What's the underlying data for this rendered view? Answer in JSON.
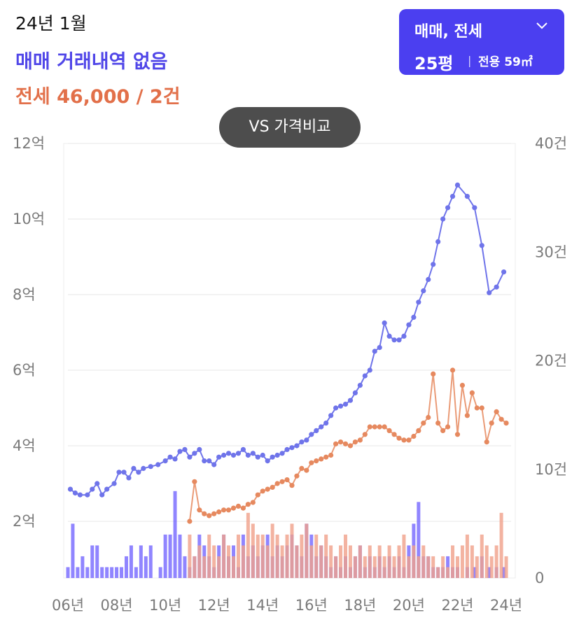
{
  "header": {
    "date": "24년 1월",
    "sale_status": "매매 거래내역 없음",
    "jeonse_status": "전세 46,000 / 2건"
  },
  "selector": {
    "type_label": "매매, 전세",
    "size_label": "25평",
    "area_label": "전용 59㎡"
  },
  "compare_button": "VS 가격비교",
  "colors": {
    "sale": "#6f74ea",
    "jeonse": "#e6895f",
    "accent": "#4b3ff0",
    "sale_bar": "#6b5cff",
    "jeonse_bar": "#f0a08a"
  },
  "chart_data": {
    "type": "line",
    "x_ticks": [
      "06년",
      "08년",
      "10년",
      "12년",
      "14년",
      "16년",
      "18년",
      "20년",
      "22년",
      "24년"
    ],
    "y_left_ticks": [
      "2억",
      "4억",
      "6억",
      "8억",
      "10억",
      "12억"
    ],
    "y_left_range": [
      0.5,
      12
    ],
    "y_right_ticks": [
      "0",
      "10건",
      "20건",
      "30건",
      "40건"
    ],
    "y_right_range": [
      0,
      40
    ],
    "x_range": [
      2006.0,
      2024.2
    ],
    "series": [
      {
        "key": "sale",
        "type": "line",
        "points": [
          [
            2006.1,
            2.85
          ],
          [
            2006.3,
            2.75
          ],
          [
            2006.5,
            2.7
          ],
          [
            2006.8,
            2.7
          ],
          [
            2007.0,
            2.85
          ],
          [
            2007.2,
            3.0
          ],
          [
            2007.4,
            2.7
          ],
          [
            2007.6,
            2.85
          ],
          [
            2007.9,
            3.0
          ],
          [
            2008.1,
            3.3
          ],
          [
            2008.3,
            3.3
          ],
          [
            2008.5,
            3.15
          ],
          [
            2008.7,
            3.4
          ],
          [
            2008.9,
            3.3
          ],
          [
            2009.1,
            3.4
          ],
          [
            2009.4,
            3.45
          ],
          [
            2009.7,
            3.5
          ],
          [
            2010.0,
            3.6
          ],
          [
            2010.2,
            3.7
          ],
          [
            2010.4,
            3.65
          ],
          [
            2010.6,
            3.85
          ],
          [
            2010.8,
            3.9
          ],
          [
            2011.0,
            3.7
          ],
          [
            2011.2,
            3.8
          ],
          [
            2011.4,
            3.9
          ],
          [
            2011.6,
            3.6
          ],
          [
            2011.8,
            3.6
          ],
          [
            2012.0,
            3.5
          ],
          [
            2012.2,
            3.7
          ],
          [
            2012.4,
            3.75
          ],
          [
            2012.6,
            3.8
          ],
          [
            2012.8,
            3.75
          ],
          [
            2013.0,
            3.8
          ],
          [
            2013.2,
            3.9
          ],
          [
            2013.4,
            3.75
          ],
          [
            2013.6,
            3.8
          ],
          [
            2013.8,
            3.7
          ],
          [
            2014.0,
            3.75
          ],
          [
            2014.2,
            3.6
          ],
          [
            2014.4,
            3.7
          ],
          [
            2014.6,
            3.75
          ],
          [
            2014.8,
            3.8
          ],
          [
            2015.0,
            3.9
          ],
          [
            2015.2,
            3.95
          ],
          [
            2015.4,
            4.0
          ],
          [
            2015.6,
            4.1
          ],
          [
            2015.8,
            4.15
          ],
          [
            2016.0,
            4.3
          ],
          [
            2016.2,
            4.4
          ],
          [
            2016.4,
            4.5
          ],
          [
            2016.6,
            4.6
          ],
          [
            2016.8,
            4.8
          ],
          [
            2017.0,
            5.0
          ],
          [
            2017.2,
            5.05
          ],
          [
            2017.4,
            5.1
          ],
          [
            2017.6,
            5.2
          ],
          [
            2017.8,
            5.4
          ],
          [
            2018.0,
            5.6
          ],
          [
            2018.2,
            5.85
          ],
          [
            2018.4,
            6.0
          ],
          [
            2018.6,
            6.5
          ],
          [
            2018.8,
            6.6
          ],
          [
            2019.0,
            7.25
          ],
          [
            2019.2,
            6.9
          ],
          [
            2019.4,
            6.8
          ],
          [
            2019.6,
            6.8
          ],
          [
            2019.8,
            6.9
          ],
          [
            2020.0,
            7.2
          ],
          [
            2020.2,
            7.4
          ],
          [
            2020.4,
            7.8
          ],
          [
            2020.6,
            8.1
          ],
          [
            2020.8,
            8.4
          ],
          [
            2021.0,
            8.8
          ],
          [
            2021.2,
            9.4
          ],
          [
            2021.4,
            10.0
          ],
          [
            2021.6,
            10.3
          ],
          [
            2021.8,
            10.6
          ],
          [
            2022.0,
            10.9
          ],
          [
            2022.4,
            10.6
          ],
          [
            2022.7,
            10.3
          ],
          [
            2023.0,
            9.3
          ],
          [
            2023.3,
            8.05
          ],
          [
            2023.6,
            8.2
          ],
          [
            2023.9,
            8.6
          ]
        ]
      },
      {
        "key": "jeonse",
        "type": "line",
        "points": [
          [
            2011.0,
            2.0
          ],
          [
            2011.2,
            3.05
          ],
          [
            2011.4,
            2.3
          ],
          [
            2011.6,
            2.2
          ],
          [
            2011.8,
            2.15
          ],
          [
            2012.0,
            2.2
          ],
          [
            2012.2,
            2.25
          ],
          [
            2012.4,
            2.3
          ],
          [
            2012.6,
            2.3
          ],
          [
            2012.8,
            2.35
          ],
          [
            2013.0,
            2.4
          ],
          [
            2013.2,
            2.35
          ],
          [
            2013.4,
            2.45
          ],
          [
            2013.6,
            2.5
          ],
          [
            2013.8,
            2.7
          ],
          [
            2014.0,
            2.8
          ],
          [
            2014.2,
            2.85
          ],
          [
            2014.4,
            2.9
          ],
          [
            2014.6,
            3.0
          ],
          [
            2014.8,
            3.05
          ],
          [
            2015.0,
            3.1
          ],
          [
            2015.2,
            2.95
          ],
          [
            2015.4,
            3.2
          ],
          [
            2015.6,
            3.4
          ],
          [
            2015.8,
            3.35
          ],
          [
            2016.0,
            3.55
          ],
          [
            2016.2,
            3.6
          ],
          [
            2016.4,
            3.65
          ],
          [
            2016.6,
            3.7
          ],
          [
            2016.8,
            3.75
          ],
          [
            2017.0,
            4.05
          ],
          [
            2017.2,
            4.1
          ],
          [
            2017.4,
            4.05
          ],
          [
            2017.6,
            4.0
          ],
          [
            2017.8,
            4.1
          ],
          [
            2018.0,
            4.15
          ],
          [
            2018.2,
            4.3
          ],
          [
            2018.4,
            4.5
          ],
          [
            2018.6,
            4.5
          ],
          [
            2018.8,
            4.5
          ],
          [
            2019.0,
            4.5
          ],
          [
            2019.2,
            4.4
          ],
          [
            2019.4,
            4.3
          ],
          [
            2019.6,
            4.2
          ],
          [
            2019.8,
            4.15
          ],
          [
            2020.0,
            4.15
          ],
          [
            2020.2,
            4.25
          ],
          [
            2020.4,
            4.4
          ],
          [
            2020.6,
            4.6
          ],
          [
            2020.8,
            4.75
          ],
          [
            2021.0,
            5.9
          ],
          [
            2021.2,
            4.6
          ],
          [
            2021.4,
            4.4
          ],
          [
            2021.6,
            4.5
          ],
          [
            2021.8,
            6.0
          ],
          [
            2022.0,
            4.3
          ],
          [
            2022.2,
            5.6
          ],
          [
            2022.4,
            4.8
          ],
          [
            2022.6,
            5.4
          ],
          [
            2022.8,
            5.0
          ],
          [
            2023.0,
            5.0
          ],
          [
            2023.2,
            4.1
          ],
          [
            2023.4,
            4.6
          ],
          [
            2023.6,
            4.9
          ],
          [
            2023.8,
            4.7
          ],
          [
            2024.0,
            4.6
          ]
        ]
      },
      {
        "key": "sale_volume",
        "type": "bar",
        "values": [
          [
            2006.0,
            1
          ],
          [
            2006.2,
            5
          ],
          [
            2006.4,
            1
          ],
          [
            2006.6,
            2
          ],
          [
            2006.8,
            1
          ],
          [
            2007.0,
            3
          ],
          [
            2007.2,
            3
          ],
          [
            2007.4,
            1
          ],
          [
            2007.6,
            1
          ],
          [
            2007.8,
            1
          ],
          [
            2008.0,
            1
          ],
          [
            2008.2,
            1
          ],
          [
            2008.4,
            2
          ],
          [
            2008.6,
            3
          ],
          [
            2008.8,
            1
          ],
          [
            2009.0,
            3
          ],
          [
            2009.2,
            2
          ],
          [
            2009.4,
            3
          ],
          [
            2009.8,
            1
          ],
          [
            2010.0,
            4
          ],
          [
            2010.2,
            4
          ],
          [
            2010.4,
            8
          ],
          [
            2010.6,
            4
          ],
          [
            2010.8,
            2
          ],
          [
            2011.0,
            1
          ],
          [
            2011.2,
            2
          ],
          [
            2011.4,
            4
          ],
          [
            2011.6,
            3
          ],
          [
            2011.8,
            2
          ],
          [
            2012.0,
            1
          ],
          [
            2012.2,
            3
          ],
          [
            2012.4,
            4
          ],
          [
            2012.6,
            2
          ],
          [
            2012.8,
            3
          ],
          [
            2013.0,
            1
          ],
          [
            2013.2,
            4
          ],
          [
            2013.4,
            2
          ],
          [
            2013.6,
            3
          ],
          [
            2013.8,
            2
          ],
          [
            2014.0,
            3
          ],
          [
            2014.2,
            4
          ],
          [
            2014.4,
            2
          ],
          [
            2014.6,
            3
          ],
          [
            2014.8,
            2
          ],
          [
            2015.0,
            3
          ],
          [
            2015.2,
            4
          ],
          [
            2015.4,
            3
          ],
          [
            2015.6,
            2
          ],
          [
            2015.8,
            5
          ],
          [
            2016.0,
            4
          ],
          [
            2016.2,
            2
          ],
          [
            2016.4,
            3
          ],
          [
            2016.6,
            2
          ],
          [
            2016.8,
            1
          ],
          [
            2017.0,
            2
          ],
          [
            2017.2,
            1
          ],
          [
            2017.4,
            2
          ],
          [
            2017.6,
            1
          ],
          [
            2017.8,
            2
          ],
          [
            2018.0,
            3
          ],
          [
            2018.2,
            1
          ],
          [
            2018.4,
            2
          ],
          [
            2018.6,
            1
          ],
          [
            2018.8,
            2
          ],
          [
            2019.0,
            1
          ],
          [
            2019.2,
            2
          ],
          [
            2019.4,
            1
          ],
          [
            2019.6,
            2
          ],
          [
            2019.8,
            1
          ],
          [
            2020.0,
            3
          ],
          [
            2020.2,
            5
          ],
          [
            2020.4,
            7
          ],
          [
            2020.6,
            2
          ],
          [
            2020.8,
            2
          ],
          [
            2021.0,
            1
          ],
          [
            2021.2,
            1
          ],
          [
            2021.4,
            1
          ],
          [
            2021.6,
            2
          ],
          [
            2021.8,
            1
          ],
          [
            2022.0,
            1
          ],
          [
            2022.4,
            1
          ],
          [
            2022.7,
            1
          ],
          [
            2023.0,
            2
          ],
          [
            2023.3,
            1
          ],
          [
            2023.6,
            1
          ],
          [
            2023.9,
            1
          ]
        ]
      },
      {
        "key": "jeonse_volume",
        "type": "bar",
        "values": [
          [
            2011.0,
            4
          ],
          [
            2011.2,
            2
          ],
          [
            2011.4,
            3
          ],
          [
            2011.6,
            2
          ],
          [
            2011.8,
            4
          ],
          [
            2012.0,
            3
          ],
          [
            2012.2,
            2
          ],
          [
            2012.4,
            4
          ],
          [
            2012.6,
            3
          ],
          [
            2012.8,
            2
          ],
          [
            2013.0,
            4
          ],
          [
            2013.2,
            3
          ],
          [
            2013.4,
            6
          ],
          [
            2013.6,
            5
          ],
          [
            2013.8,
            4
          ],
          [
            2014.0,
            4
          ],
          [
            2014.2,
            3
          ],
          [
            2014.4,
            5
          ],
          [
            2014.6,
            4
          ],
          [
            2014.8,
            3
          ],
          [
            2015.0,
            4
          ],
          [
            2015.2,
            5
          ],
          [
            2015.4,
            3
          ],
          [
            2015.6,
            4
          ],
          [
            2015.8,
            5
          ],
          [
            2016.0,
            3
          ],
          [
            2016.2,
            4
          ],
          [
            2016.4,
            3
          ],
          [
            2016.6,
            4
          ],
          [
            2016.8,
            3
          ],
          [
            2017.0,
            2
          ],
          [
            2017.2,
            3
          ],
          [
            2017.4,
            4
          ],
          [
            2017.6,
            3
          ],
          [
            2017.8,
            2
          ],
          [
            2018.0,
            3
          ],
          [
            2018.2,
            2
          ],
          [
            2018.4,
            3
          ],
          [
            2018.6,
            2
          ],
          [
            2018.8,
            3
          ],
          [
            2019.0,
            2
          ],
          [
            2019.2,
            3
          ],
          [
            2019.4,
            2
          ],
          [
            2019.6,
            3
          ],
          [
            2019.8,
            4
          ],
          [
            2020.0,
            2
          ],
          [
            2020.2,
            3
          ],
          [
            2020.4,
            2
          ],
          [
            2020.6,
            3
          ],
          [
            2020.8,
            2
          ],
          [
            2021.0,
            2
          ],
          [
            2021.2,
            1
          ],
          [
            2021.4,
            2
          ],
          [
            2021.6,
            1
          ],
          [
            2021.8,
            3
          ],
          [
            2022.0,
            2
          ],
          [
            2022.2,
            3
          ],
          [
            2022.4,
            4
          ],
          [
            2022.6,
            3
          ],
          [
            2022.8,
            2
          ],
          [
            2023.0,
            4
          ],
          [
            2023.2,
            3
          ],
          [
            2023.4,
            2
          ],
          [
            2023.6,
            3
          ],
          [
            2023.8,
            6
          ],
          [
            2024.0,
            2
          ]
        ]
      }
    ],
    "grid": true
  }
}
